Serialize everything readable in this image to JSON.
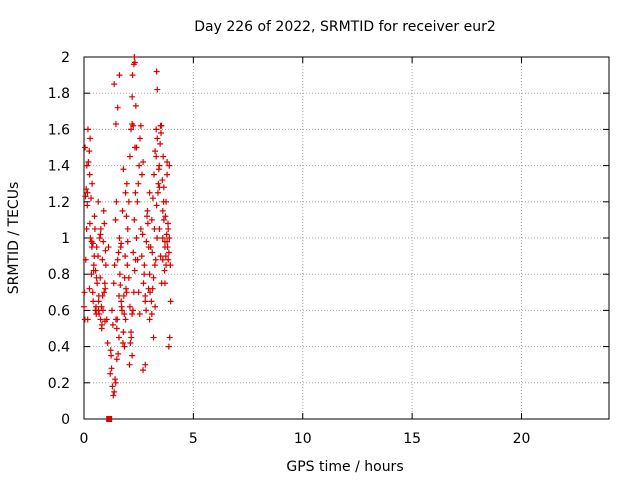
{
  "chart_data": {
    "type": "scatter",
    "title": "Day 226 of 2022, SRMTID for receiver eur2",
    "xlabel": "GPS time / hours",
    "ylabel": "SRMTID / TECUs",
    "xlim": [
      0,
      24
    ],
    "ylim": [
      0,
      2
    ],
    "xticks": [
      0,
      5,
      10,
      15,
      20
    ],
    "yticks": [
      0,
      0.2,
      0.4,
      0.6,
      0.8,
      1,
      1.2,
      1.4,
      1.6,
      1.8,
      2
    ],
    "xtick_labels": [
      "0",
      "5",
      "10",
      "15",
      "20"
    ],
    "ytick_labels": [
      "0",
      "0.2",
      "0.4",
      "0.6",
      "0.8",
      "1",
      "1.2",
      "1.4",
      "1.6",
      "1.8",
      "2"
    ],
    "grid": true,
    "marker": "plus",
    "series": [
      {
        "name": "SRMTID",
        "color": "#dd0000",
        "x": [
          0.0,
          0.04,
          0.08,
          0.12,
          0.16,
          0.2,
          0.24,
          0.28,
          0.32,
          0.36,
          0.4,
          0.44,
          0.48,
          0.52,
          0.56,
          0.6,
          0.64,
          0.68,
          0.72,
          0.76,
          0.8,
          0.84,
          0.88,
          0.92,
          0.96,
          1.0,
          0.02,
          0.1,
          0.18,
          0.26,
          0.34,
          0.42,
          0.5,
          0.58,
          0.66,
          0.74,
          0.82,
          0.9,
          0.98,
          0.05,
          0.15,
          0.25,
          0.35,
          0.45,
          0.55,
          0.65,
          0.75,
          0.85,
          0.95,
          0.07,
          0.17,
          0.27,
          0.37,
          0.47,
          0.57,
          0.67,
          0.77,
          0.87,
          0.97,
          0.13,
          0.29,
          0.41,
          0.53,
          0.69,
          0.81,
          0.93,
          1.04,
          1.08,
          1.12,
          1.2,
          1.24,
          1.28,
          1.32,
          1.36,
          1.4,
          1.44,
          1.48,
          1.52,
          1.56,
          1.6,
          1.64,
          1.68,
          1.72,
          1.76,
          1.8,
          1.84,
          1.88,
          1.92,
          1.96,
          2.0,
          1.22,
          1.3,
          1.38,
          1.46,
          1.54,
          1.62,
          1.7,
          1.78,
          1.86,
          1.94,
          1.26,
          1.34,
          1.42,
          1.5,
          1.58,
          1.66,
          1.74,
          1.82,
          1.9,
          1.98,
          1.38,
          1.46,
          1.54,
          1.62,
          1.45,
          1.5,
          1.6,
          1.7,
          1.8,
          1.85,
          1.9,
          1.95,
          2.0,
          2.05,
          2.1,
          2.15,
          2.2,
          2.05,
          2.1,
          2.15,
          2.2,
          2.25,
          2.3,
          2.35,
          2.4,
          2.45,
          2.5,
          2.55,
          2.6,
          2.65,
          2.7,
          2.75,
          2.8,
          2.85,
          2.9,
          2.95,
          3.0,
          2.08,
          2.16,
          2.24,
          2.32,
          2.4,
          2.48,
          2.56,
          2.64,
          2.72,
          2.8,
          2.88,
          2.96,
          2.12,
          2.2,
          2.28,
          2.36,
          2.44,
          2.52,
          2.6,
          2.68,
          2.76,
          2.84,
          2.92,
          3.0,
          2.22,
          2.28,
          2.3,
          2.33,
          2.37,
          2.2,
          2.25,
          2.33,
          2.7,
          2.8,
          3.0,
          3.05,
          3.1,
          3.15,
          3.2,
          3.25,
          3.3,
          3.35,
          3.4,
          3.45,
          3.5,
          3.55,
          3.6,
          3.65,
          3.7,
          3.75,
          3.8,
          3.85,
          3.9,
          3.02,
          3.12,
          3.22,
          3.32,
          3.42,
          3.52,
          3.62,
          3.72,
          3.82,
          3.08,
          3.18,
          3.28,
          3.38,
          3.48,
          3.58,
          3.68,
          3.78,
          3.88,
          3.14,
          3.24,
          3.34,
          3.44,
          3.54,
          3.64,
          3.74,
          3.84,
          3.1,
          3.18,
          3.25,
          3.32,
          3.35,
          3.3,
          3.45,
          3.5,
          3.6,
          3.7,
          3.8,
          3.6,
          3.65,
          3.7,
          3.75,
          3.8,
          3.85,
          3.9,
          3.95,
          3.88,
          3.92,
          3.96
        ],
        "y": [
          0.62,
          0.55,
          0.88,
          1.05,
          1.25,
          1.42,
          1.48,
          1.55,
          1.22,
          0.95,
          0.7,
          0.82,
          1.12,
          0.6,
          0.58,
          0.75,
          0.9,
          0.68,
          1.0,
          0.55,
          0.62,
          0.88,
          0.98,
          0.7,
          0.54,
          0.85,
          0.7,
          1.27,
          1.6,
          1.35,
          0.8,
          0.65,
          1.05,
          0.95,
          0.6,
          0.78,
          0.52,
          1.15,
          0.93,
          1.5,
          1.18,
          0.72,
          0.98,
          0.85,
          0.62,
          1.2,
          1.02,
          0.68,
          0.75,
          1.23,
          0.55,
          1.08,
          1.3,
          0.9,
          0.78,
          0.65,
          1.05,
          0.6,
          0.72,
          1.4,
          1.0,
          0.97,
          0.82,
          0.58,
          0.5,
          1.08,
          0.55,
          0.42,
          0.95,
          0.25,
          0.35,
          0.6,
          0.52,
          0.75,
          0.85,
          1.1,
          1.2,
          0.55,
          0.36,
          0.68,
          0.8,
          0.95,
          0.62,
          1.15,
          0.48,
          0.58,
          0.9,
          0.72,
          1.3,
          1.05,
          0.38,
          0.18,
          0.15,
          0.55,
          0.88,
          1.0,
          0.65,
          0.42,
          0.78,
          1.12,
          0.28,
          0.13,
          0.22,
          0.5,
          0.92,
          0.74,
          0.6,
          0.68,
          1.25,
          0.85,
          1.85,
          1.63,
          1.72,
          1.9,
          0.2,
          0.33,
          0.45,
          0.97,
          1.38,
          0.4,
          0.55,
          0.7,
          0.98,
          1.2,
          1.45,
          1.6,
          1.78,
          0.78,
          0.62,
          0.48,
          0.35,
          0.92,
          1.1,
          1.25,
          1.5,
          0.88,
          0.7,
          0.58,
          1.05,
          1.35,
          1.42,
          0.8,
          0.65,
          0.98,
          1.15,
          0.72,
          0.55,
          0.3,
          0.45,
          0.6,
          0.82,
          1.0,
          1.3,
          1.55,
          0.9,
          0.75,
          0.68,
          1.12,
          0.95,
          0.42,
          0.58,
          0.7,
          0.88,
          1.2,
          1.4,
          1.62,
          1.02,
          0.85,
          0.6,
          1.08,
          1.25,
          1.9,
          1.96,
          2.0,
          1.97,
          1.73,
          1.63,
          1.62,
          1.5,
          0.27,
          0.3,
          0.8,
          0.95,
          1.1,
          1.22,
          1.35,
          1.48,
          1.6,
          1.55,
          1.3,
          1.05,
          0.9,
          0.75,
          1.15,
          1.28,
          0.98,
          0.85,
          1.42,
          0.88,
          1.0,
          0.7,
          0.92,
          1.05,
          1.18,
          1.38,
          1.58,
          1.45,
          1.12,
          0.95,
          0.65,
          0.78,
          0.88,
          1.25,
          1.52,
          1.32,
          0.82,
          1.02,
          0.92,
          0.72,
          0.85,
          1.0,
          1.4,
          1.62,
          1.2,
          0.9,
          1.08,
          0.58,
          0.45,
          0.62,
          1.92,
          1.82,
          1.45,
          1.28,
          1.62,
          0.88,
          0.75,
          0.98,
          1.0,
          1.1,
          0.95,
          1.2,
          1.35,
          1.05,
          1.4,
          0.85,
          0.4,
          0.45,
          0.65
        ]
      }
    ],
    "extra_marker": {
      "x": 1.15,
      "y": 0.0,
      "symbol": "square"
    }
  }
}
